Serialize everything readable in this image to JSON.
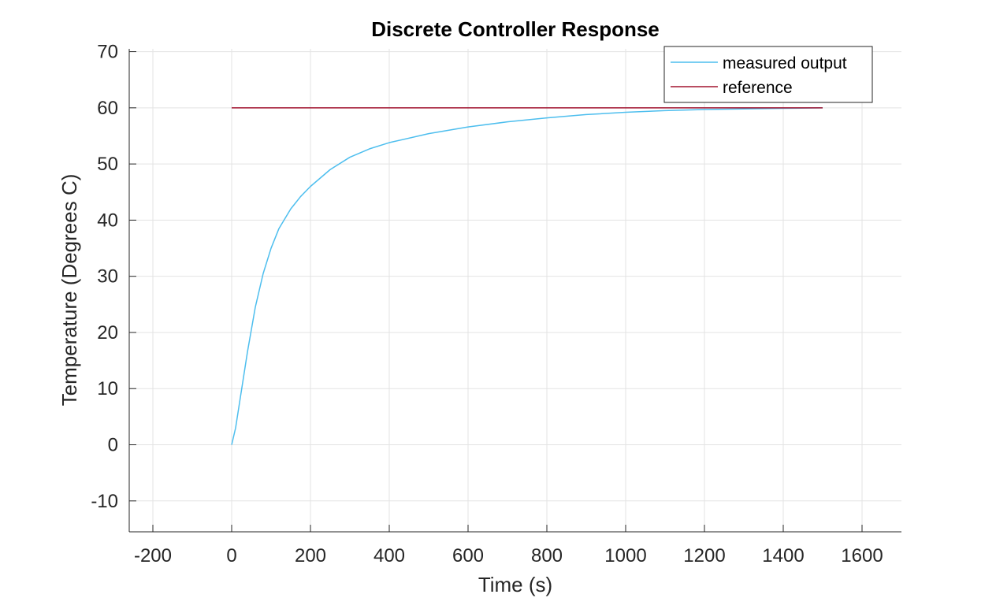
{
  "chart_data": {
    "type": "line",
    "title": "Discrete Controller Response",
    "xlabel": "Time (s)",
    "ylabel": "Temperature (Degrees C)",
    "xlim": [
      -260,
      1700
    ],
    "ylim": [
      -15.5,
      70.5
    ],
    "xticks": [
      -200,
      0,
      200,
      400,
      600,
      800,
      1000,
      1200,
      1400,
      1600
    ],
    "yticks": [
      -10,
      0,
      10,
      20,
      30,
      40,
      50,
      60,
      70
    ],
    "xtick_labels": [
      "-200",
      "0",
      "200",
      "400",
      "600",
      "800",
      "1000",
      "1200",
      "1400",
      "1600"
    ],
    "ytick_labels": [
      "-10",
      "0",
      "10",
      "20",
      "30",
      "40",
      "50",
      "60",
      "70"
    ],
    "grid": true,
    "legend_position": "top-right",
    "series": [
      {
        "name": "measured output",
        "color": "#4DBEEE",
        "x": [
          0,
          10,
          20,
          30,
          40,
          50,
          60,
          80,
          100,
          120,
          150,
          175,
          200,
          250,
          300,
          350,
          400,
          500,
          600,
          700,
          800,
          900,
          1000,
          1100,
          1200,
          1300,
          1400,
          1500
        ],
        "y": [
          0,
          3,
          7.5,
          12,
          16.5,
          20.5,
          24.5,
          30.5,
          35,
          38.5,
          42,
          44.2,
          46,
          49,
          51.2,
          52.7,
          53.8,
          55.4,
          56.6,
          57.5,
          58.2,
          58.8,
          59.2,
          59.5,
          59.7,
          59.8,
          59.9,
          60
        ]
      },
      {
        "name": "reference",
        "color": "#A2142F",
        "x": [
          0,
          1500
        ],
        "y": [
          60,
          60
        ]
      }
    ]
  }
}
